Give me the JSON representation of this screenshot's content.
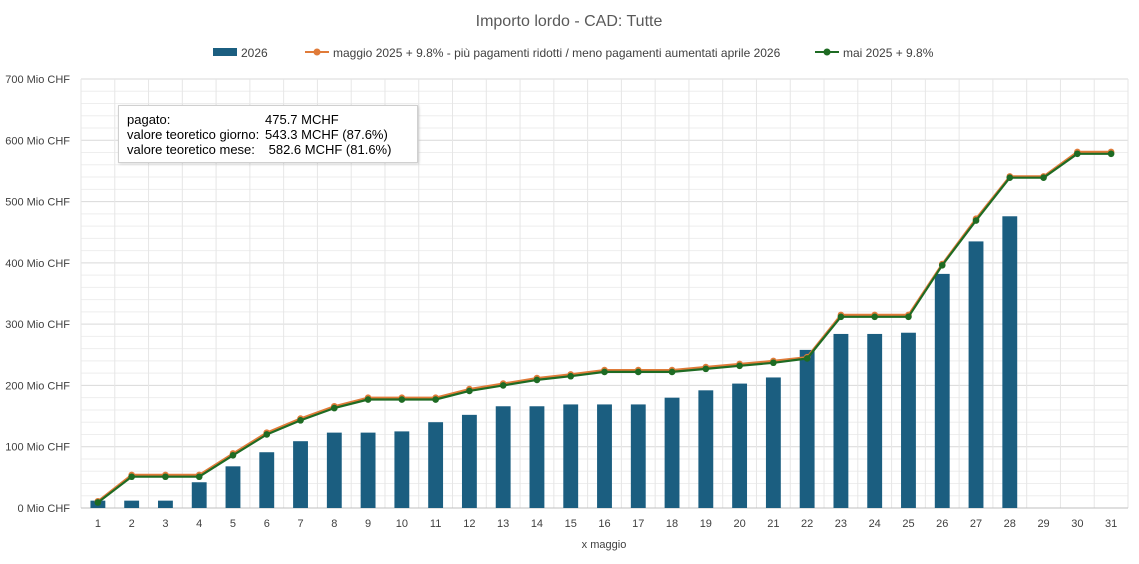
{
  "chart_data": {
    "type": "bar",
    "title": "Importo lordo - CAD: Tutte",
    "xlabel": "x maggio",
    "ylabel": "",
    "ylim": [
      0,
      700
    ],
    "yticks": [
      "0 Mio CHF",
      "100 Mio CHF",
      "200 Mio CHF",
      "300 Mio CHF",
      "400 Mio CHF",
      "500 Mio CHF",
      "600 Mio CHF",
      "700 Mio CHF"
    ],
    "ytick_values": [
      0,
      100,
      200,
      300,
      400,
      500,
      600,
      700
    ],
    "categories": [
      "1",
      "2",
      "3",
      "4",
      "5",
      "6",
      "7",
      "8",
      "9",
      "10",
      "11",
      "12",
      "13",
      "14",
      "15",
      "16",
      "17",
      "18",
      "19",
      "20",
      "21",
      "22",
      "23",
      "24",
      "25",
      "26",
      "27",
      "28",
      "29",
      "30",
      "31"
    ],
    "grid": true,
    "legend_position": "top",
    "series": [
      {
        "name": "2026",
        "kind": "bar",
        "color": "#1b5e80",
        "values": [
          12,
          12,
          12,
          42,
          68,
          91,
          109,
          123,
          123,
          125,
          140,
          152,
          166,
          166,
          169,
          169,
          169,
          180,
          192,
          203,
          213,
          258,
          284,
          284,
          286,
          382,
          435,
          476,
          null,
          null,
          null
        ]
      },
      {
        "name": "maggio 2025 + 9.8% -  più pagamenti ridotti / meno pagamenti aumentati aprile 2026",
        "kind": "line",
        "color": "#e07b39",
        "values": [
          11,
          54,
          54,
          54,
          89,
          123,
          146,
          166,
          180,
          180,
          180,
          194,
          203,
          212,
          218,
          225,
          225,
          225,
          230,
          235,
          240,
          246,
          315,
          315,
          315,
          398,
          472,
          541,
          541,
          581,
          581
        ]
      },
      {
        "name": "mai 2025 + 9.8%",
        "kind": "line",
        "color": "#1e6b23",
        "values": [
          9,
          51,
          51,
          51,
          86,
          120,
          143,
          163,
          177,
          177,
          177,
          191,
          200,
          209,
          215,
          222,
          222,
          222,
          227,
          232,
          237,
          244,
          312,
          312,
          312,
          396,
          469,
          539,
          539,
          578,
          578
        ]
      }
    ],
    "annotation": {
      "rows": [
        {
          "label": "pagato:",
          "value": "475.7 MCHF"
        },
        {
          "label": "valore teoretico giorno:",
          "value": "543.3 MCHF (87.6%)"
        },
        {
          "label": "valore teoretico mese:",
          "value": " 582.6 MCHF (81.6%)"
        }
      ]
    }
  }
}
